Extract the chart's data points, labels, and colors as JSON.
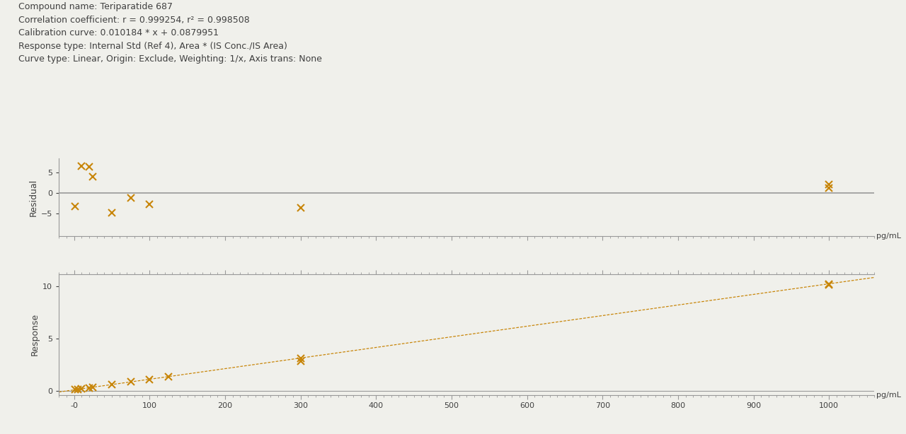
{
  "title_lines": [
    "Compound name: Teriparatide 687",
    "Correlation coefficient: r = 0.999254, r² = 0.998508",
    "Calibration curve: 0.010184 * x + 0.0879951",
    "Response type: Internal Std (Ref 4), Area * (IS Conc./IS Area)",
    "Curve type: Linear, Origin: Exclude, Weighting: 1/x, Axis trans: None"
  ],
  "slope": 0.010184,
  "intercept": 0.0879951,
  "residuals_x": [
    1.0,
    10.0,
    20.0,
    25.0,
    50.0,
    75.0,
    100.0,
    300.0,
    1000.0,
    1000.0
  ],
  "residuals_y": [
    -3.2,
    6.7,
    6.5,
    4.0,
    -4.8,
    -1.2,
    -2.7,
    -3.5,
    1.2,
    2.2
  ],
  "data_x": [
    1.0,
    5.0,
    10.0,
    20.0,
    25.0,
    50.0,
    75.0,
    100.0,
    125.0,
    300.0,
    300.0,
    1000.0,
    1000.0
  ],
  "data_y": [
    0.095,
    0.14,
    0.19,
    0.29,
    0.34,
    0.595,
    0.85,
    1.1,
    1.36,
    3.14,
    2.86,
    10.27,
    10.19
  ],
  "marker_color": "#C8860A",
  "line_color": "#C8860A",
  "background_color": "#F0F0EB",
  "text_color": "#404040",
  "axis_color": "#999999",
  "xlim": [
    -20,
    1060
  ],
  "ylim_response": [
    -0.4,
    11.2
  ],
  "ylim_residual": [
    -10.5,
    8.5
  ],
  "xlabel": "pg/mL",
  "ylabel_top": "Residual",
  "ylabel_bottom": "Response",
  "xticks": [
    0,
    100,
    200,
    300,
    400,
    500,
    600,
    700,
    800,
    900,
    1000
  ],
  "xtick_labels": [
    "-0",
    "100",
    "200",
    "300",
    "400",
    "500",
    "600",
    "700",
    "800",
    "900",
    "1000"
  ],
  "yticks_residual": [
    -5.0,
    0.0,
    5.0
  ],
  "yticks_response": [
    0.0,
    5.0,
    10.0
  ]
}
